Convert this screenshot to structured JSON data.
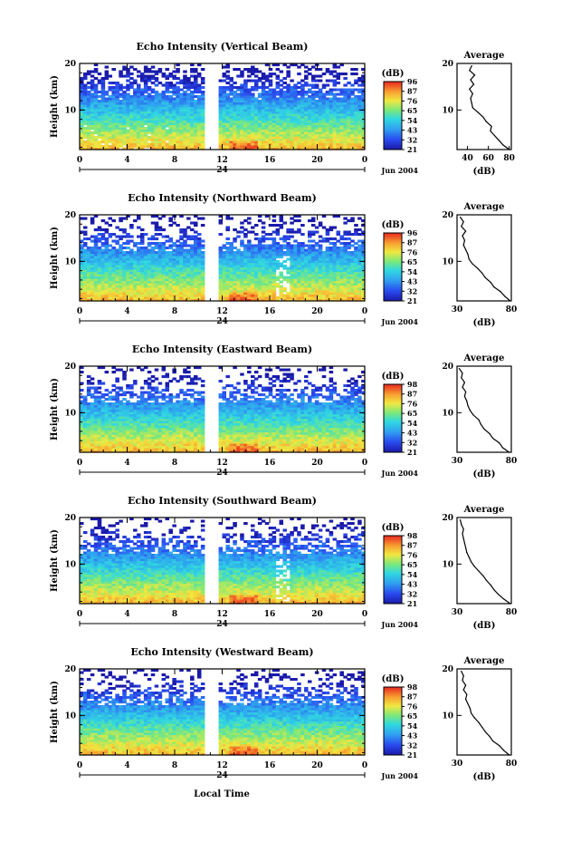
{
  "figure": {
    "xlabel": "Local Time",
    "ylabel": "Height (km)",
    "date_label": "Jun 2004",
    "day_label": "24",
    "colorbar_unit": "(dB)",
    "profile_title": "Average",
    "profile_xlabel": "(dB)"
  },
  "chart_data": [
    {
      "type": "heatmap",
      "title": "Echo Intensity (Vertical Beam)",
      "xlabel": "Local Time",
      "ylabel": "Height (km)",
      "x_ticks": [
        "0",
        "4",
        "8",
        "12",
        "16",
        "20",
        "0"
      ],
      "y_ticks": [
        "10",
        "20"
      ],
      "ylim": [
        1.5,
        20
      ],
      "xlim": [
        0,
        24
      ],
      "data_gap_hours": [
        10.4,
        11.6
      ],
      "colorbar": {
        "unit": "(dB)",
        "labels": [
          "96",
          "87",
          "76",
          "65",
          "54",
          "43",
          "32",
          "21"
        ],
        "range": [
          21,
          96
        ]
      },
      "profile": {
        "title": "Average",
        "xlabel": "(dB)",
        "x_ticks": [
          "40",
          "60",
          "80"
        ],
        "y_ticks": [
          "10",
          "20"
        ],
        "xlim": [
          30,
          82
        ],
        "height": [
          1.5,
          2.5,
          3.5,
          4.5,
          5.5,
          6.5,
          7.5,
          8.5,
          9.5,
          10.5,
          11.5,
          12.5,
          13.5,
          14.5,
          15.5,
          16.5,
          17.5,
          18.5,
          19.5
        ],
        "value": [
          80,
          74,
          70,
          66,
          62,
          63,
          58,
          55,
          50,
          45,
          44,
          43,
          45,
          42,
          46,
          43,
          47,
          42,
          44
        ]
      }
    },
    {
      "type": "heatmap",
      "title": "Echo Intensity (Northward Beam)",
      "xlabel": "Local Time",
      "ylabel": "Height (km)",
      "x_ticks": [
        "0",
        "4",
        "8",
        "12",
        "16",
        "20",
        "0"
      ],
      "y_ticks": [
        "10",
        "20"
      ],
      "ylim": [
        1.5,
        20
      ],
      "xlim": [
        0,
        24
      ],
      "data_gap_hours": [
        10.4,
        11.6
      ],
      "colorbar": {
        "unit": "(dB)",
        "labels": [
          "96",
          "87",
          "76",
          "65",
          "54",
          "43",
          "32",
          "21"
        ],
        "range": [
          21,
          96
        ]
      },
      "profile": {
        "title": "Average",
        "xlabel": "(dB)",
        "x_ticks": [
          "30",
          "80"
        ],
        "y_ticks": [
          "10",
          "20"
        ],
        "xlim": [
          30,
          80
        ],
        "height": [
          1.5,
          2.5,
          3.5,
          4.5,
          5.5,
          6.5,
          7.5,
          8.5,
          9.5,
          10.5,
          11.5,
          12.5,
          13.5,
          14.5,
          15.5,
          16.5,
          17.5,
          18.5,
          19.5
        ],
        "value": [
          79,
          74,
          70,
          64,
          61,
          56,
          53,
          49,
          44,
          41,
          40,
          38,
          36,
          37,
          35,
          38,
          34,
          36,
          33
        ]
      }
    },
    {
      "type": "heatmap",
      "title": "Echo Intensity (Eastward Beam)",
      "xlabel": "Local Time",
      "ylabel": "Height (km)",
      "x_ticks": [
        "0",
        "4",
        "8",
        "12",
        "16",
        "20",
        "0"
      ],
      "y_ticks": [
        "10",
        "20"
      ],
      "ylim": [
        1.5,
        20
      ],
      "xlim": [
        0,
        24
      ],
      "data_gap_hours": [
        10.4,
        11.6
      ],
      "colorbar": {
        "unit": "(dB)",
        "labels": [
          "98",
          "87",
          "76",
          "65",
          "54",
          "43",
          "32",
          "21"
        ],
        "range": [
          21,
          98
        ]
      },
      "profile": {
        "title": "Average",
        "xlabel": "(dB)",
        "x_ticks": [
          "30",
          "80"
        ],
        "y_ticks": [
          "10",
          "20"
        ],
        "xlim": [
          30,
          80
        ],
        "height": [
          1.5,
          2.5,
          3.5,
          4.5,
          5.5,
          6.5,
          7.5,
          8.5,
          9.5,
          10.5,
          11.5,
          12.5,
          13.5,
          14.5,
          15.5,
          16.5,
          17.5,
          18.5,
          19.5
        ],
        "value": [
          78,
          72,
          69,
          63,
          60,
          55,
          52,
          50,
          45,
          42,
          40,
          39,
          37,
          38,
          35,
          37,
          34,
          35,
          32
        ]
      }
    },
    {
      "type": "heatmap",
      "title": "Echo Intensity (Southward Beam)",
      "xlabel": "Local Time",
      "ylabel": "Height (km)",
      "x_ticks": [
        "0",
        "4",
        "8",
        "12",
        "16",
        "20",
        "0"
      ],
      "y_ticks": [
        "10",
        "20"
      ],
      "ylim": [
        1.5,
        20
      ],
      "xlim": [
        0,
        24
      ],
      "data_gap_hours": [
        10.4,
        11.6
      ],
      "colorbar": {
        "unit": "(dB)",
        "labels": [
          "98",
          "87",
          "76",
          "65",
          "54",
          "43",
          "32",
          "21"
        ],
        "range": [
          21,
          98
        ]
      },
      "profile": {
        "title": "Average",
        "xlabel": "(dB)",
        "x_ticks": [
          "30",
          "80"
        ],
        "y_ticks": [
          "10",
          "20"
        ],
        "xlim": [
          30,
          80
        ],
        "height": [
          1.5,
          2.5,
          3.5,
          4.5,
          5.5,
          6.5,
          7.5,
          8.5,
          9.5,
          10.5,
          11.5,
          12.5,
          13.5,
          14.5,
          15.5,
          16.5,
          17.5,
          18.5,
          19.5
        ],
        "value": [
          79,
          73,
          68,
          64,
          61,
          57,
          54,
          50,
          46,
          43,
          41,
          39,
          38,
          37,
          36,
          35,
          36,
          34,
          33
        ]
      }
    },
    {
      "type": "heatmap",
      "title": "Echo Intensity (Westward Beam)",
      "xlabel": "Local Time",
      "ylabel": "Height (km)",
      "x_ticks": [
        "0",
        "4",
        "8",
        "12",
        "16",
        "20",
        "0"
      ],
      "y_ticks": [
        "10",
        "20"
      ],
      "ylim": [
        1.5,
        20
      ],
      "xlim": [
        0,
        24
      ],
      "data_gap_hours": [
        10.4,
        11.6
      ],
      "colorbar": {
        "unit": "(dB)",
        "labels": [
          "98",
          "87",
          "76",
          "65",
          "54",
          "43",
          "32",
          "21"
        ],
        "range": [
          21,
          98
        ]
      },
      "profile": {
        "title": "Average",
        "xlabel": "(dB)",
        "x_ticks": [
          "30",
          "80"
        ],
        "y_ticks": [
          "10",
          "20"
        ],
        "xlim": [
          30,
          80
        ],
        "height": [
          1.5,
          2.5,
          3.5,
          4.5,
          5.5,
          6.5,
          7.5,
          8.5,
          9.5,
          10.5,
          11.5,
          12.5,
          13.5,
          14.5,
          15.5,
          16.5,
          17.5,
          18.5,
          19.5
        ],
        "value": [
          78,
          73,
          69,
          63,
          60,
          56,
          53,
          50,
          46,
          43,
          42,
          40,
          38,
          39,
          36,
          38,
          35,
          36,
          34
        ]
      }
    }
  ]
}
